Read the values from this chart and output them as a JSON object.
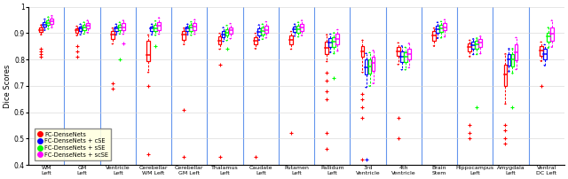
{
  "categories": [
    "WM\nLeft",
    "GM\nLeft",
    "Ventricle\nLeft",
    "Cerebellar\nWM Left",
    "Cerebellar\nGM Left",
    "Thalamus\nLeft",
    "Caudate\nLeft",
    "Putamen\nLeft",
    "Pallidum\nLeft",
    "3rd\nVentricle",
    "4th\nVentricle",
    "Brain\nStem",
    "Hippocampus\nLeft",
    "Amygdala\nLeft",
    "Ventral\nDC Left"
  ],
  "colors": [
    "red",
    "blue",
    "green",
    "magenta"
  ],
  "legend_labels": [
    "FC-DenseNets",
    "FC-DenseNets + cSE",
    "FC-DenseNets + sSE",
    "FC-DenseNets + scSE"
  ],
  "ylim": [
    0.4,
    1.0
  ],
  "ylabel": "Dice Scores",
  "box_data": {
    "red": {
      "WM\nLeft": {
        "q1": 0.905,
        "med": 0.913,
        "q3": 0.921,
        "whislo": 0.895,
        "whishi": 0.93,
        "fliers": [
          0.84,
          0.83,
          0.82,
          0.81
        ]
      },
      "GM\nLeft": {
        "q1": 0.9,
        "med": 0.91,
        "q3": 0.918,
        "whislo": 0.892,
        "whishi": 0.925,
        "fliers": [
          0.85,
          0.83,
          0.81
        ]
      },
      "Ventricle\nLeft": {
        "q1": 0.878,
        "med": 0.895,
        "q3": 0.908,
        "whislo": 0.86,
        "whishi": 0.918,
        "fliers": [
          0.71,
          0.69
        ]
      },
      "Cerebellar\nWM Left": {
        "q1": 0.793,
        "med": 0.818,
        "q3": 0.87,
        "whislo": 0.752,
        "whishi": 0.892,
        "fliers": [
          0.7,
          0.44
        ]
      },
      "Cerebellar\nGM Left": {
        "q1": 0.876,
        "med": 0.895,
        "q3": 0.908,
        "whislo": 0.858,
        "whishi": 0.918,
        "fliers": [
          0.61,
          0.43
        ]
      },
      "Thalamus\nLeft": {
        "q1": 0.856,
        "med": 0.872,
        "q3": 0.888,
        "whislo": 0.84,
        "whishi": 0.898,
        "fliers": [
          0.78,
          0.43
        ]
      },
      "Caudate\nLeft": {
        "q1": 0.857,
        "med": 0.872,
        "q3": 0.885,
        "whislo": 0.842,
        "whishi": 0.898,
        "fliers": [
          0.43
        ]
      },
      "Putamen\nLeft": {
        "q1": 0.857,
        "med": 0.875,
        "q3": 0.892,
        "whislo": 0.84,
        "whishi": 0.905,
        "fliers": [
          0.52
        ]
      },
      "Pallidum\nLeft": {
        "q1": 0.82,
        "med": 0.843,
        "q3": 0.868,
        "whislo": 0.793,
        "whishi": 0.893,
        "fliers": [
          0.75,
          0.72,
          0.68,
          0.65,
          0.52,
          0.46
        ]
      },
      "3rd\nVentricle": {
        "q1": 0.81,
        "med": 0.832,
        "q3": 0.852,
        "whislo": 0.752,
        "whishi": 0.872,
        "fliers": [
          0.67,
          0.65,
          0.62,
          0.58,
          0.42
        ]
      },
      "4th\nVentricle": {
        "q1": 0.815,
        "med": 0.832,
        "q3": 0.848,
        "whislo": 0.782,
        "whishi": 0.862,
        "fliers": [
          0.58,
          0.5
        ]
      },
      "Brain\nStem": {
        "q1": 0.872,
        "med": 0.892,
        "q3": 0.908,
        "whislo": 0.852,
        "whishi": 0.918,
        "fliers": []
      },
      "Hippocampus\nLeft": {
        "q1": 0.832,
        "med": 0.847,
        "q3": 0.862,
        "whislo": 0.812,
        "whishi": 0.872,
        "fliers": [
          0.55,
          0.52,
          0.5
        ]
      },
      "Amygdala\nLeft": {
        "q1": 0.698,
        "med": 0.742,
        "q3": 0.78,
        "whislo": 0.632,
        "whishi": 0.82,
        "fliers": [
          0.55,
          0.53,
          0.5,
          0.48
        ]
      },
      "Ventral\nDC Left": {
        "q1": 0.815,
        "med": 0.835,
        "q3": 0.852,
        "whislo": 0.795,
        "whishi": 0.865,
        "fliers": [
          0.7
        ]
      }
    },
    "blue": {
      "WM\nLeft": {
        "q1": 0.925,
        "med": 0.933,
        "q3": 0.943,
        "whislo": 0.912,
        "whishi": 0.952,
        "fliers": []
      },
      "GM\nLeft": {
        "q1": 0.908,
        "med": 0.917,
        "q3": 0.925,
        "whislo": 0.895,
        "whishi": 0.933,
        "fliers": []
      },
      "Ventricle\nLeft": {
        "q1": 0.908,
        "med": 0.917,
        "q3": 0.925,
        "whislo": 0.895,
        "whishi": 0.933,
        "fliers": []
      },
      "Cerebellar\nWM Left": {
        "q1": 0.908,
        "med": 0.917,
        "q3": 0.925,
        "whislo": 0.895,
        "whishi": 0.933,
        "fliers": []
      },
      "Cerebellar\nGM Left": {
        "q1": 0.908,
        "med": 0.917,
        "q3": 0.925,
        "whislo": 0.895,
        "whishi": 0.933,
        "fliers": []
      },
      "Thalamus\nLeft": {
        "q1": 0.885,
        "med": 0.895,
        "q3": 0.908,
        "whislo": 0.87,
        "whishi": 0.92,
        "fliers": []
      },
      "Caudate\nLeft": {
        "q1": 0.89,
        "med": 0.905,
        "q3": 0.918,
        "whislo": 0.875,
        "whishi": 0.93,
        "fliers": []
      },
      "Putamen\nLeft": {
        "q1": 0.905,
        "med": 0.915,
        "q3": 0.925,
        "whislo": 0.89,
        "whishi": 0.933,
        "fliers": []
      },
      "Pallidum\nLeft": {
        "q1": 0.847,
        "med": 0.865,
        "q3": 0.88,
        "whislo": 0.828,
        "whishi": 0.895,
        "fliers": []
      },
      "3rd\nVentricle": {
        "q1": 0.742,
        "med": 0.77,
        "q3": 0.8,
        "whislo": 0.695,
        "whishi": 0.822,
        "fliers": [
          0.42
        ]
      },
      "4th\nVentricle": {
        "q1": 0.792,
        "med": 0.812,
        "q3": 0.832,
        "whislo": 0.762,
        "whishi": 0.85,
        "fliers": []
      },
      "Brain\nStem": {
        "q1": 0.902,
        "med": 0.915,
        "q3": 0.927,
        "whislo": 0.882,
        "whishi": 0.94,
        "fliers": []
      },
      "Hippocampus\nLeft": {
        "q1": 0.84,
        "med": 0.855,
        "q3": 0.867,
        "whislo": 0.82,
        "whishi": 0.877,
        "fliers": []
      },
      "Amygdala\nLeft": {
        "q1": 0.778,
        "med": 0.802,
        "q3": 0.822,
        "whislo": 0.755,
        "whishi": 0.84,
        "fliers": []
      },
      "Ventral\nDC Left": {
        "q1": 0.8,
        "med": 0.82,
        "q3": 0.84,
        "whislo": 0.778,
        "whishi": 0.855,
        "fliers": []
      }
    },
    "green": {
      "WM\nLeft": {
        "q1": 0.93,
        "med": 0.94,
        "q3": 0.95,
        "whislo": 0.917,
        "whishi": 0.96,
        "fliers": []
      },
      "GM\nLeft": {
        "q1": 0.912,
        "med": 0.922,
        "q3": 0.93,
        "whislo": 0.898,
        "whishi": 0.94,
        "fliers": []
      },
      "Ventricle\nLeft": {
        "q1": 0.912,
        "med": 0.922,
        "q3": 0.93,
        "whislo": 0.898,
        "whishi": 0.94,
        "fliers": [
          0.8
        ]
      },
      "Cerebellar\nWM Left": {
        "q1": 0.908,
        "med": 0.918,
        "q3": 0.93,
        "whislo": 0.893,
        "whishi": 0.945,
        "fliers": [
          0.85
        ]
      },
      "Cerebellar\nGM Left": {
        "q1": 0.908,
        "med": 0.92,
        "q3": 0.93,
        "whislo": 0.893,
        "whishi": 0.942,
        "fliers": []
      },
      "Thalamus\nLeft": {
        "q1": 0.89,
        "med": 0.902,
        "q3": 0.915,
        "whislo": 0.873,
        "whishi": 0.928,
        "fliers": [
          0.84
        ]
      },
      "Caudate\nLeft": {
        "q1": 0.895,
        "med": 0.907,
        "q3": 0.92,
        "whislo": 0.878,
        "whishi": 0.933,
        "fliers": []
      },
      "Putamen\nLeft": {
        "q1": 0.902,
        "med": 0.915,
        "q3": 0.927,
        "whislo": 0.887,
        "whishi": 0.94,
        "fliers": []
      },
      "Pallidum\nLeft": {
        "q1": 0.847,
        "med": 0.867,
        "q3": 0.885,
        "whislo": 0.823,
        "whishi": 0.9,
        "fliers": [
          0.73
        ]
      },
      "3rd\nVentricle": {
        "q1": 0.748,
        "med": 0.775,
        "q3": 0.8,
        "whislo": 0.7,
        "whishi": 0.825,
        "fliers": []
      },
      "4th\nVentricle": {
        "q1": 0.792,
        "med": 0.81,
        "q3": 0.827,
        "whislo": 0.762,
        "whishi": 0.845,
        "fliers": []
      },
      "Brain\nStem": {
        "q1": 0.905,
        "med": 0.917,
        "q3": 0.93,
        "whislo": 0.883,
        "whishi": 0.943,
        "fliers": []
      },
      "Hippocampus\nLeft": {
        "q1": 0.842,
        "med": 0.857,
        "q3": 0.87,
        "whislo": 0.82,
        "whishi": 0.88,
        "fliers": [
          0.62
        ]
      },
      "Amygdala\nLeft": {
        "q1": 0.772,
        "med": 0.802,
        "q3": 0.822,
        "whislo": 0.748,
        "whishi": 0.84,
        "fliers": [
          0.62
        ]
      },
      "Ventral\nDC Left": {
        "q1": 0.867,
        "med": 0.887,
        "q3": 0.902,
        "whislo": 0.845,
        "whishi": 0.92,
        "fliers": []
      }
    },
    "magenta": {
      "WM\nLeft": {
        "q1": 0.935,
        "med": 0.945,
        "q3": 0.955,
        "whislo": 0.922,
        "whishi": 0.965,
        "fliers": []
      },
      "GM\nLeft": {
        "q1": 0.917,
        "med": 0.927,
        "q3": 0.937,
        "whislo": 0.903,
        "whishi": 0.947,
        "fliers": []
      },
      "Ventricle\nLeft": {
        "q1": 0.912,
        "med": 0.922,
        "q3": 0.937,
        "whislo": 0.897,
        "whishi": 0.947,
        "fliers": [
          0.86
        ]
      },
      "Cerebellar\nWM Left": {
        "q1": 0.912,
        "med": 0.927,
        "q3": 0.942,
        "whislo": 0.897,
        "whishi": 0.957,
        "fliers": []
      },
      "Cerebellar\nGM Left": {
        "q1": 0.912,
        "med": 0.924,
        "q3": 0.937,
        "whislo": 0.897,
        "whishi": 0.95,
        "fliers": []
      },
      "Thalamus\nLeft": {
        "q1": 0.897,
        "med": 0.91,
        "q3": 0.922,
        "whislo": 0.88,
        "whishi": 0.935,
        "fliers": []
      },
      "Caudate\nLeft": {
        "q1": 0.9,
        "med": 0.912,
        "q3": 0.927,
        "whislo": 0.883,
        "whishi": 0.942,
        "fliers": []
      },
      "Putamen\nLeft": {
        "q1": 0.907,
        "med": 0.922,
        "q3": 0.934,
        "whislo": 0.892,
        "whishi": 0.947,
        "fliers": []
      },
      "Pallidum\nLeft": {
        "q1": 0.857,
        "med": 0.877,
        "q3": 0.897,
        "whislo": 0.833,
        "whishi": 0.912,
        "fliers": []
      },
      "3rd\nVentricle": {
        "q1": 0.757,
        "med": 0.787,
        "q3": 0.812,
        "whislo": 0.71,
        "whishi": 0.833,
        "fliers": []
      },
      "4th\nVentricle": {
        "q1": 0.8,
        "med": 0.822,
        "q3": 0.842,
        "whislo": 0.77,
        "whishi": 0.86,
        "fliers": []
      },
      "Brain\nStem": {
        "q1": 0.91,
        "med": 0.922,
        "q3": 0.937,
        "whislo": 0.887,
        "whishi": 0.95,
        "fliers": []
      },
      "Hippocampus\nLeft": {
        "q1": 0.847,
        "med": 0.864,
        "q3": 0.877,
        "whislo": 0.823,
        "whishi": 0.887,
        "fliers": []
      },
      "Amygdala\nLeft": {
        "q1": 0.797,
        "med": 0.827,
        "q3": 0.857,
        "whislo": 0.763,
        "whishi": 0.882,
        "fliers": []
      },
      "Ventral\nDC Left": {
        "q1": 0.872,
        "med": 0.897,
        "q3": 0.922,
        "whislo": 0.848,
        "whishi": 0.947,
        "fliers": []
      }
    }
  }
}
